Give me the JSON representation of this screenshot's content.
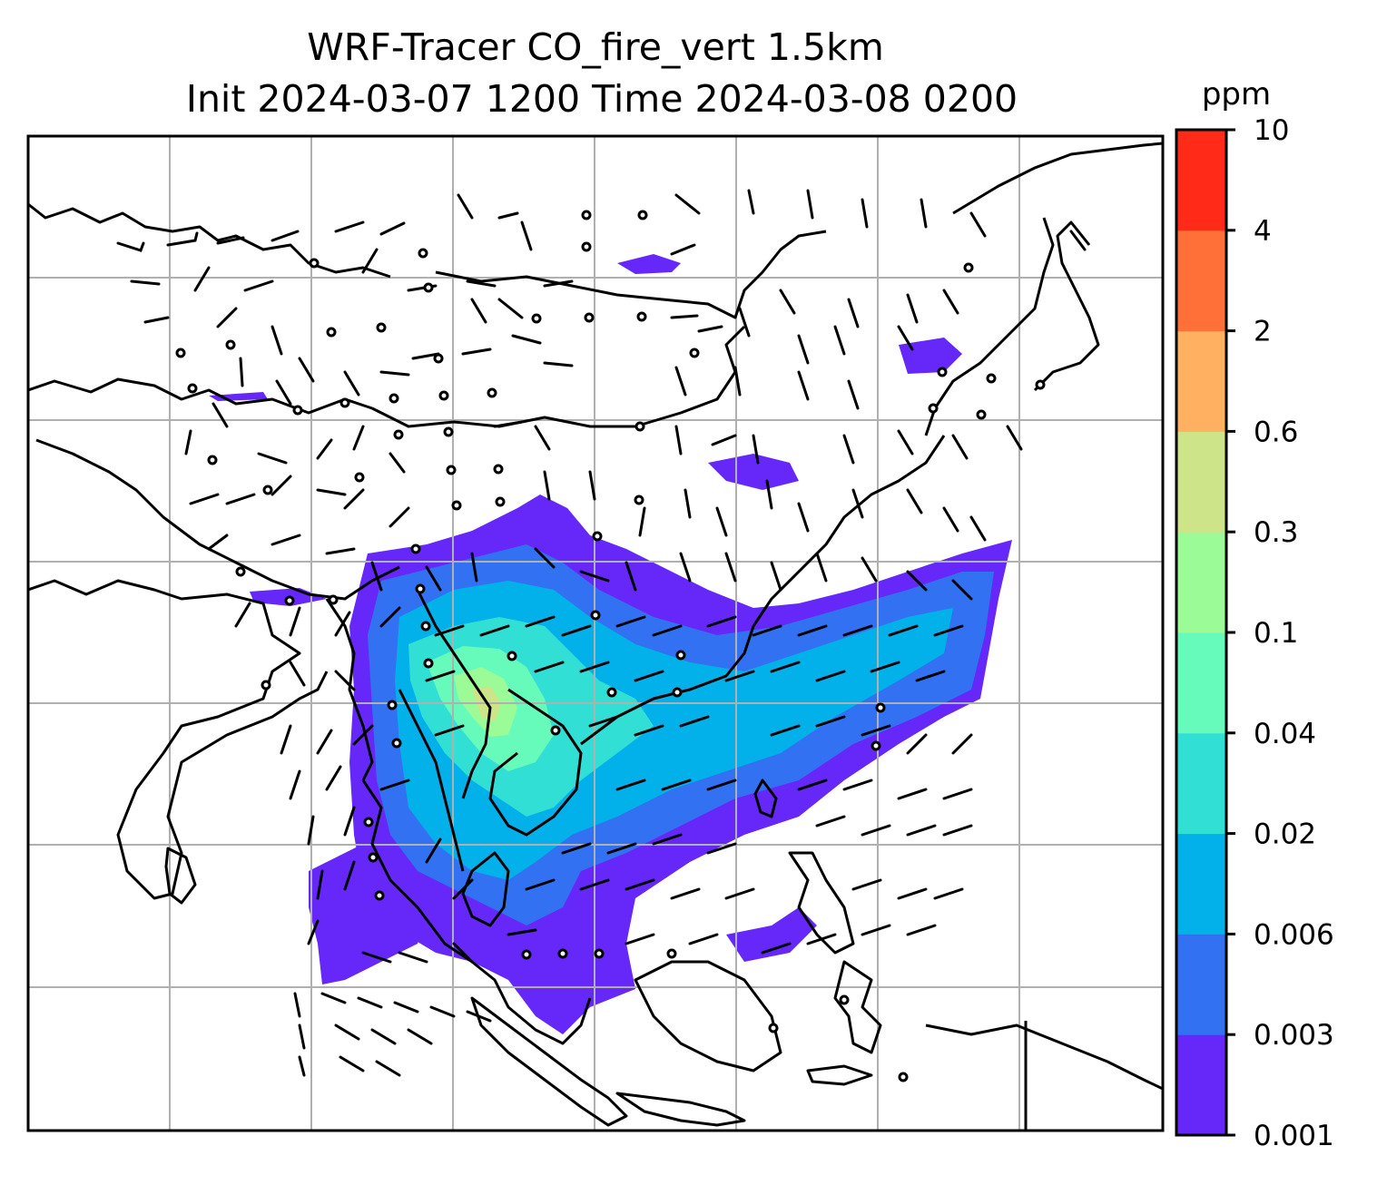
{
  "map": {
    "title_line1": "WRF-Tracer CO_fire_vert 1.5km",
    "title_line2": "Init 2024-03-07 1200 Time 2024-03-08 0200",
    "field": "CO_fire_vert",
    "level": "1.5km",
    "overlay": "wind-barbs",
    "gridlines": true
  },
  "colorbar": {
    "unit": "ppm",
    "levels": [
      "0.001",
      "0.003",
      "0.006",
      "0.02",
      "0.04",
      "0.1",
      "0.3",
      "0.6",
      "2",
      "4",
      "10"
    ],
    "colors": [
      "#6528f8",
      "#3272f2",
      "#02b1e9",
      "#31dfd4",
      "#67fbbb",
      "#9bfb97",
      "#cde488",
      "#ffb060",
      "#ff7038",
      "#ff2a18"
    ]
  },
  "colors": {
    "coastline": "#000000",
    "grid": "#b0b0b0",
    "frame": "#000000"
  }
}
